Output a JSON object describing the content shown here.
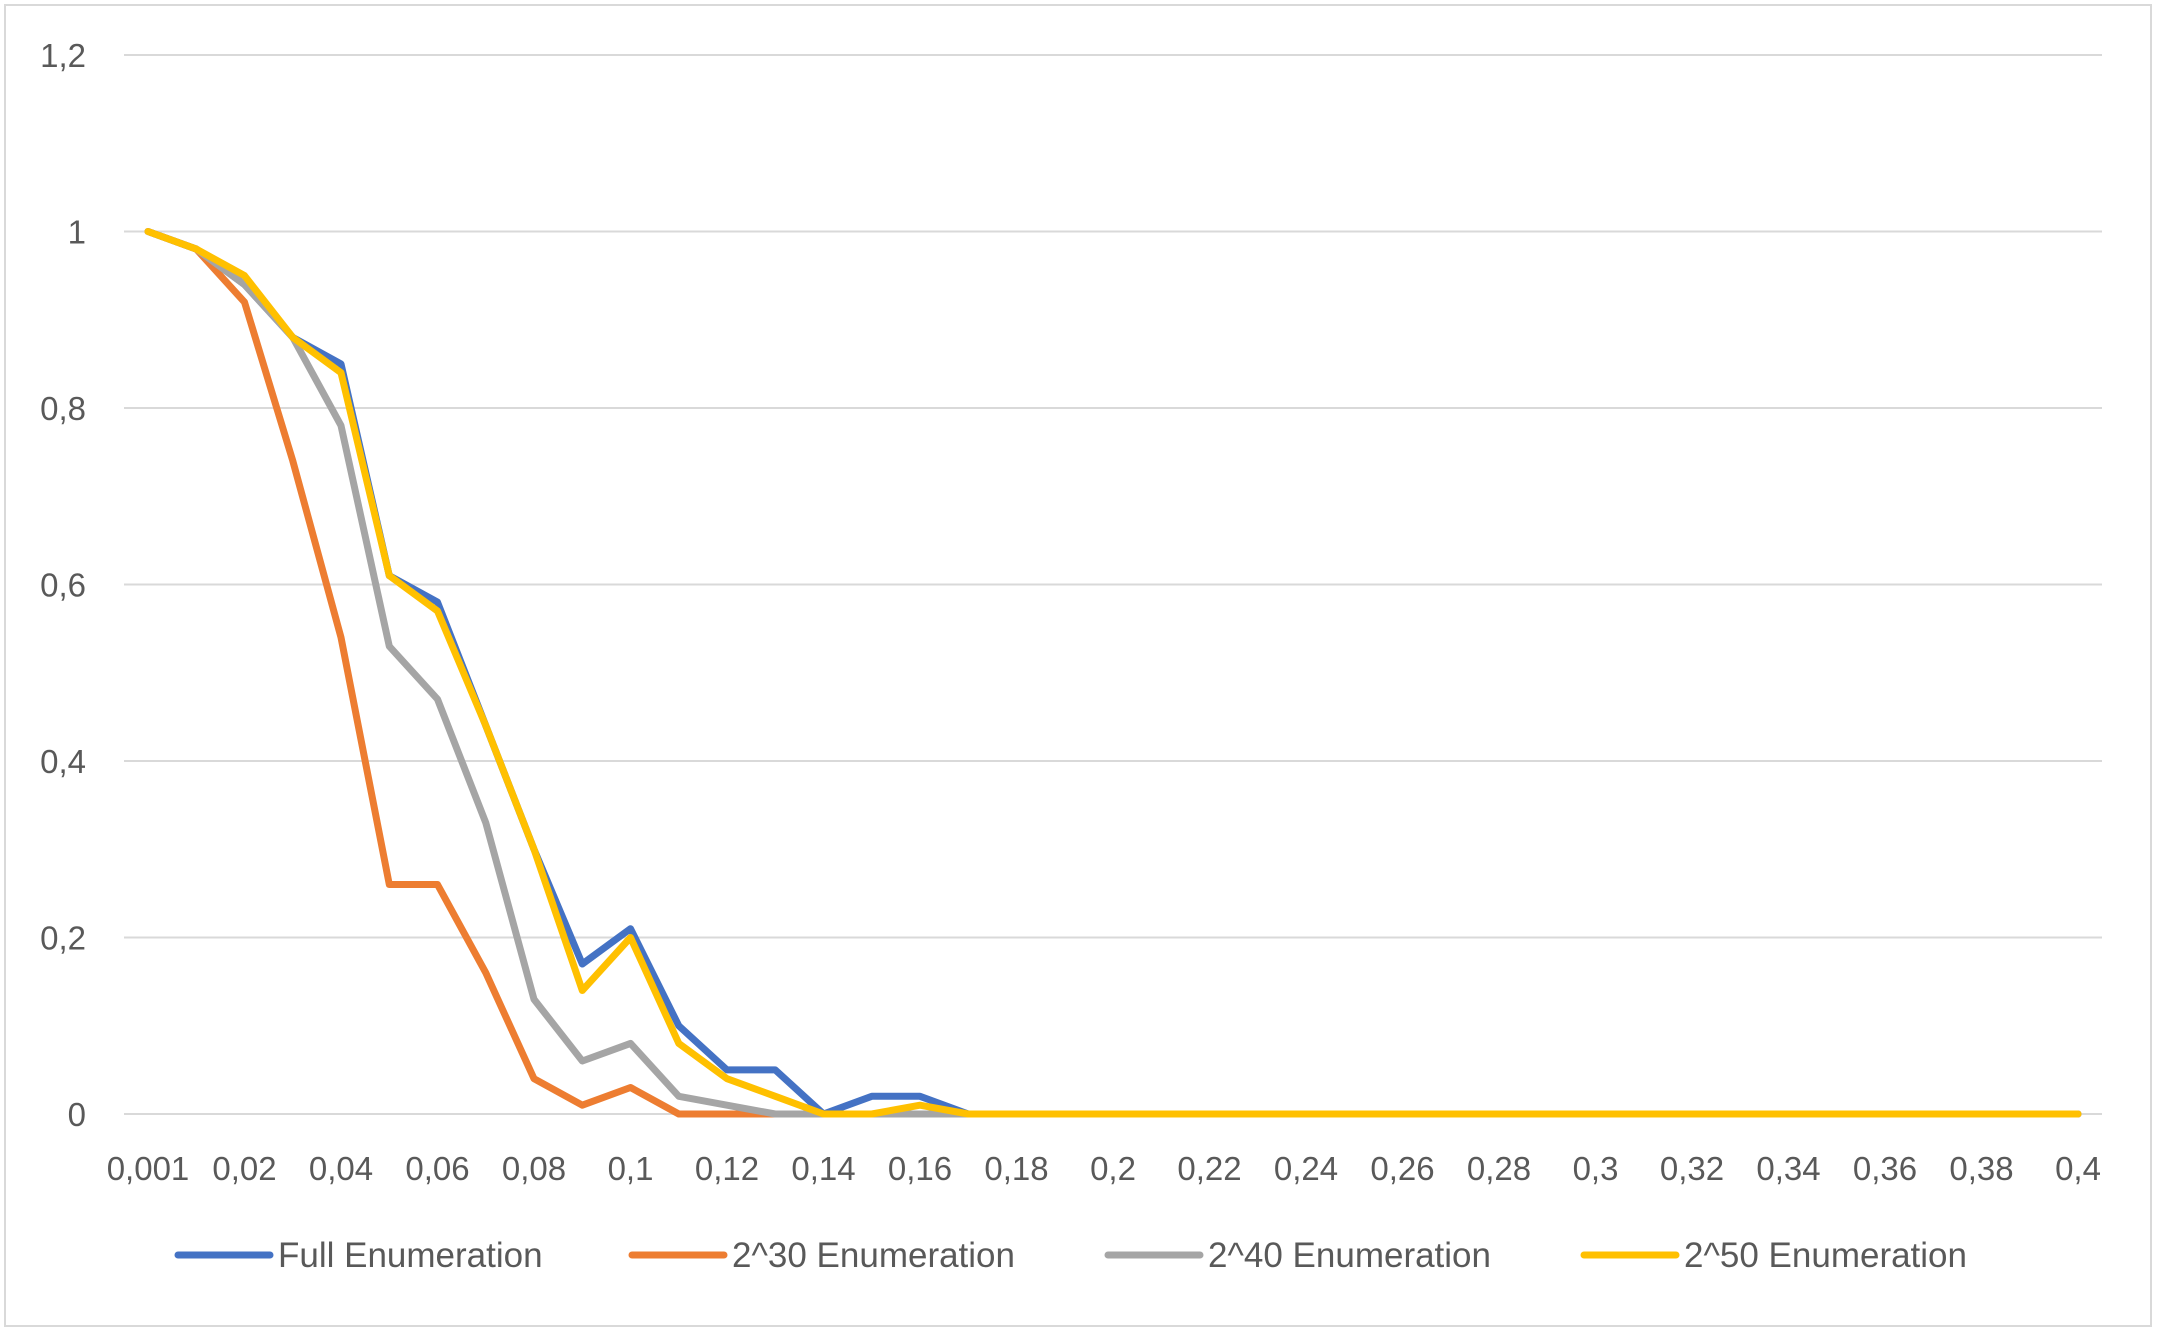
{
  "chart_data": {
    "type": "line",
    "title": "",
    "xlabel": "",
    "ylabel": "",
    "categories": [
      "0,001",
      "0,01",
      "0,02",
      "0,03",
      "0,04",
      "0,05",
      "0,06",
      "0,07",
      "0,08",
      "0,09",
      "0,1",
      "0,11",
      "0,12",
      "0,13",
      "0,14",
      "0,15",
      "0,16",
      "0,17",
      "0,18",
      "0,19",
      "0,2",
      "0,21",
      "0,22",
      "0,23",
      "0,24",
      "0,25",
      "0,26",
      "0,27",
      "0,28",
      "0,29",
      "0,3",
      "0,31",
      "0,32",
      "0,33",
      "0,34",
      "0,35",
      "0,36",
      "0,37",
      "0,38",
      "0,39",
      "0,4"
    ],
    "x_tick_labels": [
      "0,001",
      "0,02",
      "0,04",
      "0,06",
      "0,08",
      "0,1",
      "0,12",
      "0,14",
      "0,16",
      "0,18",
      "0,2",
      "0,22",
      "0,24",
      "0,26",
      "0,28",
      "0,3",
      "0,32",
      "0,34",
      "0,36",
      "0,38",
      "0,4"
    ],
    "y_tick_labels": [
      "0",
      "0,2",
      "0,4",
      "0,6",
      "0,8",
      "1",
      "1,2"
    ],
    "ylim": [
      0,
      1.2
    ],
    "grid": "horizontal",
    "legend_position": "bottom",
    "series": [
      {
        "name": "Full Enumeration",
        "color": "#4472C4",
        "values": [
          1,
          0.98,
          0.94,
          0.88,
          0.85,
          0.61,
          0.58,
          0.44,
          0.3,
          0.17,
          0.21,
          0.1,
          0.05,
          0.05,
          0,
          0.02,
          0.02,
          0,
          0,
          0,
          0,
          0,
          0,
          0,
          0,
          0,
          0,
          0,
          0,
          0,
          0,
          0,
          0,
          0,
          0,
          0,
          0,
          0,
          0,
          0,
          0
        ]
      },
      {
        "name": "2^30 Enumeration",
        "color": "#ED7D31",
        "values": [
          1,
          0.98,
          0.92,
          0.74,
          0.54,
          0.26,
          0.26,
          0.16,
          0.04,
          0.01,
          0.03,
          0,
          0,
          0,
          0,
          0,
          0,
          0,
          0,
          0,
          0,
          0,
          0,
          0,
          0,
          0,
          0,
          0,
          0,
          0,
          0,
          0,
          0,
          0,
          0,
          0,
          0,
          0,
          0,
          0,
          0
        ]
      },
      {
        "name": "2^40 Enumeration",
        "color": "#A5A5A5",
        "values": [
          1,
          0.98,
          0.94,
          0.88,
          0.78,
          0.53,
          0.47,
          0.33,
          0.13,
          0.06,
          0.08,
          0.02,
          0.01,
          0,
          0,
          0,
          0,
          0,
          0,
          0,
          0,
          0,
          0,
          0,
          0,
          0,
          0,
          0,
          0,
          0,
          0,
          0,
          0,
          0,
          0,
          0,
          0,
          0,
          0,
          0,
          0
        ]
      },
      {
        "name": "2^50 Enumeration",
        "color": "#FFC000",
        "values": [
          1,
          0.98,
          0.95,
          0.88,
          0.84,
          0.61,
          0.57,
          0.44,
          0.3,
          0.14,
          0.2,
          0.08,
          0.04,
          0.02,
          0,
          0,
          0.01,
          0,
          0,
          0,
          0,
          0,
          0,
          0,
          0,
          0,
          0,
          0,
          0,
          0,
          0,
          0,
          0,
          0,
          0,
          0,
          0,
          0,
          0,
          0,
          0
        ]
      }
    ]
  }
}
